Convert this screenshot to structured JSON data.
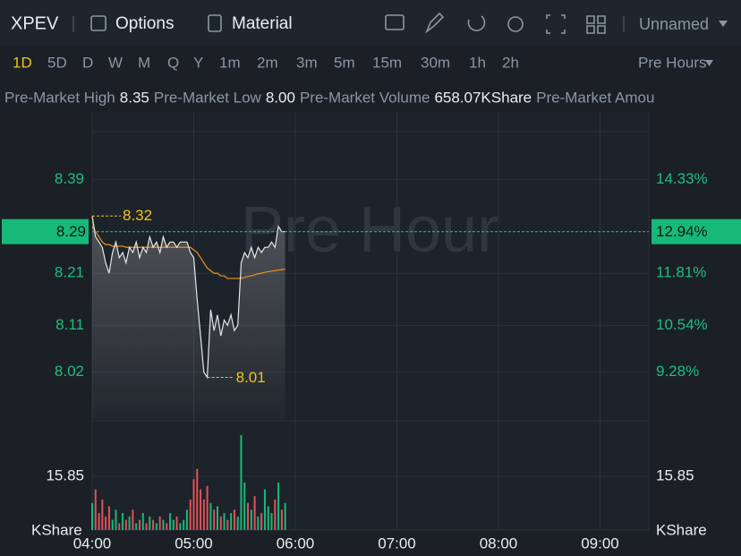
{
  "header": {
    "symbol": "XPEV",
    "options": "Options",
    "material": "Material",
    "layout": "Unnamed"
  },
  "periods": [
    "1D",
    "5D",
    "D",
    "W",
    "M",
    "Q",
    "Y",
    "1m",
    "2m",
    "3m",
    "5m",
    "15m",
    "30m",
    "1h",
    "2h"
  ],
  "session": "Pre Hours",
  "stats": [
    {
      "label": "Pre-Market High",
      "value": "8.35"
    },
    {
      "label": "Pre-Market Low",
      "value": "8.00"
    },
    {
      "label": "Pre-Market Volume",
      "value": "658.07KShare"
    },
    {
      "label": "Pre-Market Amou"
    }
  ],
  "chart_data": {
    "type": "line",
    "watermark": "Pre Hour",
    "x_labels": [
      "04:00",
      "05:00",
      "06:00",
      "07:00",
      "08:00",
      "09:00"
    ],
    "ylim": [
      7.93,
      8.52
    ],
    "yticks": [
      8.39,
      8.21,
      8.11,
      8.02
    ],
    "pct_labels": [
      "14.33%",
      "11.81%",
      "10.54%",
      "9.28%"
    ],
    "last": 8.29,
    "last_pct": "12.94%",
    "high": 8.32,
    "low": 8.01,
    "price_color": "#e6e6e6",
    "average_color": "#e08a1e",
    "price": [
      8.32,
      8.28,
      8.27,
      8.26,
      8.23,
      8.21,
      8.25,
      8.27,
      8.24,
      8.25,
      8.23,
      8.26,
      8.25,
      8.27,
      8.24,
      8.26,
      8.25,
      8.28,
      8.26,
      8.27,
      8.25,
      8.28,
      8.26,
      8.27,
      8.27,
      8.26,
      8.27,
      8.27,
      8.27,
      8.25,
      8.24,
      8.16,
      8.09,
      8.02,
      8.01,
      8.14,
      8.1,
      8.13,
      8.09,
      8.12,
      8.11,
      8.13,
      8.1,
      8.11,
      8.23,
      8.25,
      8.24,
      8.26,
      8.24,
      8.26,
      8.25,
      8.26,
      8.26,
      8.27,
      8.26,
      8.3,
      8.29,
      8.29
    ],
    "average": [
      8.3,
      8.29,
      8.28,
      8.27,
      8.265,
      8.265,
      8.262,
      8.262,
      8.262,
      8.262,
      8.26,
      8.26,
      8.26,
      8.26,
      8.26,
      8.26,
      8.26,
      8.26,
      8.26,
      8.26,
      8.26,
      8.26,
      8.26,
      8.26,
      8.26,
      8.26,
      8.26,
      8.26,
      8.26,
      8.26,
      8.255,
      8.25,
      8.24,
      8.23,
      8.22,
      8.215,
      8.21,
      8.21,
      8.205,
      8.205,
      8.2,
      8.2,
      8.2,
      8.2,
      8.2,
      8.202,
      8.204,
      8.205,
      8.207,
      8.209,
      8.21,
      8.212,
      8.213,
      8.214,
      8.215,
      8.216,
      8.217,
      8.218
    ],
    "volume": {
      "values": [
        8,
        12,
        5,
        9,
        4,
        7,
        3,
        6,
        2,
        5,
        3,
        4,
        6,
        2,
        3,
        5,
        2,
        4,
        3,
        2,
        4,
        3,
        2,
        5,
        3,
        4,
        2,
        3,
        6,
        9,
        15,
        18,
        12,
        9,
        13,
        8,
        6,
        7,
        4,
        5,
        3,
        5,
        6,
        4,
        28,
        14,
        8,
        6,
        10,
        4,
        5,
        12,
        7,
        5,
        9,
        14,
        6,
        8
      ],
      "ylim": [
        0,
        31.7
      ],
      "yticks": [
        15.85
      ],
      "unit": "KShare",
      "up_color": "#17b97a",
      "down_color": "#e0525a"
    }
  }
}
